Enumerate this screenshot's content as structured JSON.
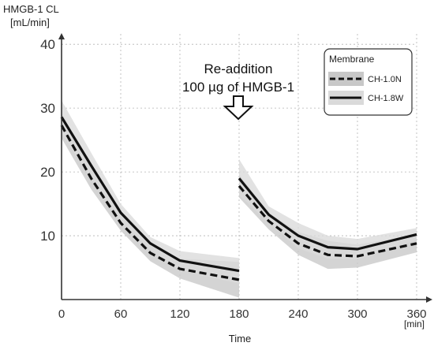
{
  "chart_data": {
    "type": "line",
    "ylabel_line1": "HMGB-1 CL",
    "ylabel_line2": "[mL/min]",
    "xlabel": "Time",
    "xunit": "[min]",
    "xlim": [
      0,
      360
    ],
    "ylim": [
      0,
      42
    ],
    "xticks": [
      0,
      60,
      120,
      180,
      240,
      300,
      360
    ],
    "yticks": [
      10,
      20,
      30,
      40
    ],
    "grid": true,
    "legend": {
      "title": "Membrane",
      "placement": "top-right"
    },
    "annotation": {
      "line1": "Re-addition",
      "line2": "100 µg  of HMGB-1",
      "arrow_x": 180
    },
    "series": [
      {
        "name": "CH-1.0N",
        "style": "dashed",
        "color": "#111111",
        "segments": [
          {
            "x": [
              0,
              30,
              60,
              90,
              120,
              180
            ],
            "y": [
              27.3,
              19.0,
              12.0,
              7.3,
              4.8,
              3.1
            ]
          },
          {
            "x": [
              180,
              210,
              240,
              270,
              300,
              360
            ],
            "y": [
              17.8,
              12.3,
              8.8,
              7.0,
              6.8,
              8.8
            ]
          }
        ]
      },
      {
        "name": "CH-1.8W",
        "style": "solid",
        "color": "#111111",
        "segments": [
          {
            "x": [
              0,
              30,
              60,
              90,
              120,
              180
            ],
            "y": [
              28.6,
              21.0,
              13.6,
              8.8,
              6.1,
              4.5
            ]
          },
          {
            "x": [
              180,
              210,
              240,
              270,
              300,
              360
            ],
            "y": [
              19.0,
              13.3,
              10.0,
              8.2,
              7.9,
              10.2
            ]
          }
        ]
      }
    ],
    "bands": [
      {
        "series": "CH-1.0N",
        "color": "#c8c8c8",
        "segments": [
          {
            "x": [
              0,
              30,
              60,
              90,
              120,
              180
            ],
            "low": [
              25.3,
              17.3,
              10.8,
              6.0,
              3.3,
              0.3
            ],
            "high": [
              29.3,
              20.6,
              13.4,
              8.6,
              6.4,
              5.9
            ]
          },
          {
            "x": [
              180,
              210,
              240,
              270,
              300,
              360
            ],
            "low": [
              16.0,
              11.0,
              7.0,
              4.8,
              5.0,
              7.4
            ],
            "high": [
              19.6,
              13.6,
              10.6,
              9.2,
              8.6,
              10.2
            ]
          }
        ]
      },
      {
        "series": "CH-1.8W",
        "color": "#dadada",
        "segments": [
          {
            "x": [
              0,
              30,
              60,
              90,
              120,
              180
            ],
            "low": [
              26.1,
              19.0,
              12.3,
              7.8,
              4.6,
              2.5
            ],
            "high": [
              31.2,
              23.0,
              15.0,
              9.8,
              7.6,
              6.5
            ]
          },
          {
            "x": [
              180,
              210,
              240,
              270,
              300,
              360
            ],
            "low": [
              16.4,
              12.0,
              8.0,
              6.4,
              6.3,
              9.3
            ],
            "high": [
              22.0,
              14.6,
              12.0,
              10.0,
              9.5,
              11.2
            ]
          }
        ]
      }
    ]
  }
}
